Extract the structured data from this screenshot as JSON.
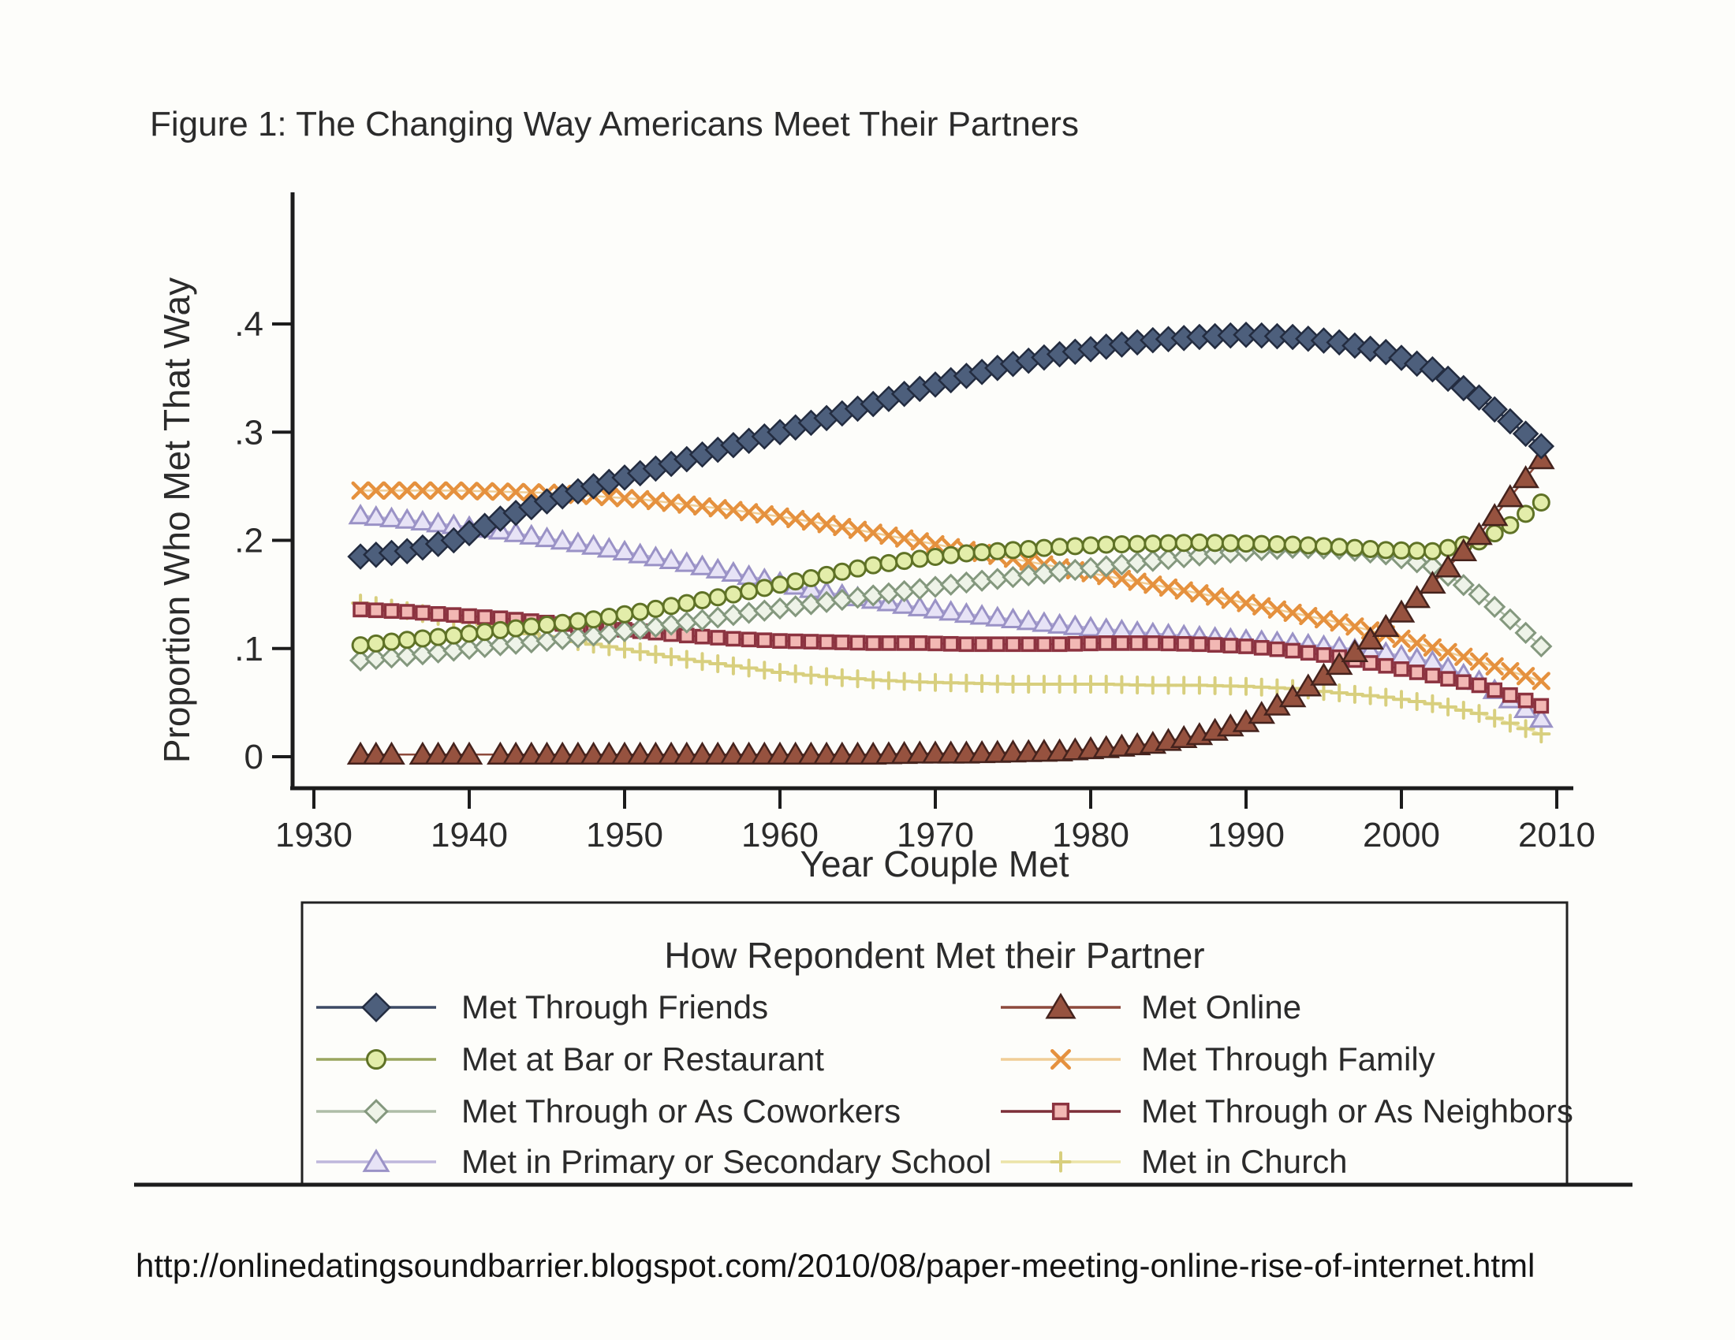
{
  "page": {
    "source_url": "http://onlinedatingsoundbarrier.blogspot.com/2010/08/paper-meeting-online-rise-of-internet.html"
  },
  "chart_data": {
    "type": "line",
    "title": "Figure 1: The Changing Way Americans Meet Their Partners",
    "xlabel": "Year Couple Met",
    "ylabel": "Proportion Who Met That Way",
    "grid": false,
    "xlim": [
      1928,
      2011
    ],
    "ylim": [
      0,
      0.45
    ],
    "x_ticks": [
      1930,
      1940,
      1950,
      1960,
      1970,
      1980,
      1990,
      2000,
      2010
    ],
    "y_ticks": [
      {
        "value": 0.0,
        "label": "0"
      },
      {
        "value": 0.1,
        "label": ".1"
      },
      {
        "value": 0.2,
        "label": ".2"
      },
      {
        "value": 0.3,
        "label": ".3"
      },
      {
        "value": 0.4,
        "label": ".4"
      }
    ],
    "legend": {
      "title": "How Repondent Met their Partner",
      "position": "bottom-box",
      "entries": [
        "friends",
        "online",
        "bar",
        "family",
        "coworkers",
        "neighbors",
        "school",
        "church"
      ]
    },
    "series": [
      {
        "key": "friends",
        "name": "Met Through Friends",
        "marker": "diamond-filled",
        "color": "#232c40",
        "fill": "#4d5f7c",
        "line_color": "#3c4a64",
        "years": [
          1933,
          1936,
          1939,
          1942,
          1945,
          1948,
          1951,
          1954,
          1957,
          1960,
          1963,
          1966,
          1969,
          1972,
          1975,
          1978,
          1981,
          1984,
          1987,
          1990,
          1993,
          1996,
          1999,
          2002,
          2005,
          2007,
          2009
        ],
        "values": [
          0.185,
          0.19,
          0.2,
          0.22,
          0.236,
          0.25,
          0.262,
          0.275,
          0.288,
          0.3,
          0.313,
          0.326,
          0.34,
          0.352,
          0.363,
          0.372,
          0.379,
          0.385,
          0.388,
          0.39,
          0.388,
          0.383,
          0.374,
          0.358,
          0.332,
          0.31,
          0.287
        ]
      },
      {
        "key": "online",
        "name": "Met Online",
        "marker": "triangle-filled",
        "color": "#45231d",
        "fill": "#96523f",
        "line_color": "#8d4a3c",
        "marker_gap_years": [
          1936,
          1941
        ],
        "years": [
          1933,
          1936,
          1939,
          1942,
          1945,
          1948,
          1951,
          1954,
          1957,
          1960,
          1963,
          1966,
          1969,
          1972,
          1975,
          1978,
          1981,
          1984,
          1987,
          1990,
          1993,
          1996,
          1999,
          2002,
          2005,
          2007,
          2009
        ],
        "values": [
          0.002,
          0.002,
          0.002,
          0.002,
          0.002,
          0.002,
          0.002,
          0.002,
          0.002,
          0.002,
          0.002,
          0.002,
          0.003,
          0.003,
          0.004,
          0.005,
          0.008,
          0.012,
          0.02,
          0.032,
          0.055,
          0.085,
          0.12,
          0.16,
          0.205,
          0.24,
          0.275
        ]
      },
      {
        "key": "bar",
        "name": "Met at Bar or Restaurant",
        "marker": "circle-open",
        "color": "#5f7226",
        "fill": "#e3edaa",
        "line_color": "#9aa55e",
        "years": [
          1933,
          1936,
          1939,
          1942,
          1945,
          1948,
          1951,
          1954,
          1957,
          1960,
          1963,
          1966,
          1969,
          1972,
          1975,
          1978,
          1981,
          1984,
          1987,
          1990,
          1993,
          1996,
          1999,
          2002,
          2005,
          2007,
          2009
        ],
        "values": [
          0.103,
          0.108,
          0.112,
          0.117,
          0.122,
          0.127,
          0.134,
          0.142,
          0.15,
          0.159,
          0.168,
          0.177,
          0.183,
          0.188,
          0.191,
          0.194,
          0.196,
          0.197,
          0.198,
          0.197,
          0.196,
          0.194,
          0.191,
          0.19,
          0.199,
          0.214,
          0.235
        ]
      },
      {
        "key": "family",
        "name": "Met Through Family",
        "marker": "x-cross",
        "color": "#e5913e",
        "fill": "none",
        "line_color": "#f0cd96",
        "years": [
          1933,
          1936,
          1939,
          1942,
          1945,
          1948,
          1951,
          1954,
          1957,
          1960,
          1963,
          1966,
          1969,
          1972,
          1975,
          1978,
          1981,
          1984,
          1987,
          1990,
          1993,
          1996,
          1999,
          2002,
          2005,
          2007,
          2009
        ],
        "values": [
          0.246,
          0.246,
          0.246,
          0.245,
          0.244,
          0.241,
          0.238,
          0.233,
          0.228,
          0.222,
          0.215,
          0.207,
          0.199,
          0.191,
          0.183,
          0.175,
          0.167,
          0.159,
          0.151,
          0.142,
          0.133,
          0.124,
          0.113,
          0.101,
          0.088,
          0.079,
          0.07
        ]
      },
      {
        "key": "coworkers",
        "name": "Met Through or As Coworkers",
        "marker": "diamond-open",
        "color": "#84987e",
        "fill": "#eef3e8",
        "line_color": "#aebda7",
        "years": [
          1933,
          1936,
          1939,
          1942,
          1945,
          1948,
          1951,
          1954,
          1957,
          1960,
          1963,
          1966,
          1969,
          1972,
          1975,
          1978,
          1981,
          1984,
          1987,
          1990,
          1993,
          1996,
          1999,
          2002,
          2005,
          2007,
          2009
        ],
        "values": [
          0.089,
          0.093,
          0.098,
          0.103,
          0.107,
          0.112,
          0.118,
          0.124,
          0.131,
          0.137,
          0.143,
          0.149,
          0.155,
          0.161,
          0.166,
          0.171,
          0.176,
          0.181,
          0.186,
          0.19,
          0.193,
          0.192,
          0.187,
          0.176,
          0.15,
          0.127,
          0.102
        ]
      },
      {
        "key": "neighbors",
        "name": "Met Through or As Neighbors",
        "marker": "square-open",
        "color": "#8c3340",
        "fill": "#f2b8b4",
        "line_color": "#7c2e38",
        "years": [
          1933,
          1936,
          1939,
          1942,
          1945,
          1948,
          1951,
          1954,
          1957,
          1960,
          1963,
          1966,
          1969,
          1972,
          1975,
          1978,
          1981,
          1984,
          1987,
          1990,
          1993,
          1996,
          1999,
          2002,
          2005,
          2007,
          2009
        ],
        "values": [
          0.136,
          0.134,
          0.131,
          0.128,
          0.124,
          0.12,
          0.116,
          0.112,
          0.109,
          0.107,
          0.106,
          0.105,
          0.105,
          0.104,
          0.104,
          0.104,
          0.105,
          0.105,
          0.104,
          0.102,
          0.098,
          0.092,
          0.084,
          0.075,
          0.066,
          0.057,
          0.047
        ]
      },
      {
        "key": "school",
        "name": "Met in Primary or Secondary School",
        "marker": "triangle-open",
        "color": "#9a92c6",
        "fill": "#e7e3f6",
        "line_color": "#beb7dc",
        "years": [
          1933,
          1936,
          1939,
          1942,
          1945,
          1948,
          1951,
          1954,
          1957,
          1960,
          1963,
          1966,
          1969,
          1972,
          1975,
          1978,
          1981,
          1984,
          1987,
          1990,
          1993,
          1996,
          1999,
          2002,
          2005,
          2007,
          2009
        ],
        "values": [
          0.223,
          0.219,
          0.214,
          0.209,
          0.202,
          0.195,
          0.187,
          0.179,
          0.17,
          0.161,
          0.152,
          0.145,
          0.138,
          0.132,
          0.127,
          0.122,
          0.118,
          0.114,
          0.111,
          0.108,
          0.105,
          0.101,
          0.096,
          0.088,
          0.07,
          0.053,
          0.035
        ]
      },
      {
        "key": "church",
        "name": "Met in Church",
        "marker": "plus",
        "color": "#d8cf7e",
        "fill": "none",
        "line_color": "#ebe4a8",
        "years": [
          1933,
          1936,
          1939,
          1942,
          1945,
          1948,
          1951,
          1954,
          1957,
          1960,
          1963,
          1966,
          1969,
          1972,
          1975,
          1978,
          1981,
          1984,
          1987,
          1990,
          1993,
          1996,
          1999,
          2002,
          2005,
          2007,
          2009
        ],
        "values": [
          0.142,
          0.135,
          0.127,
          0.119,
          0.111,
          0.104,
          0.097,
          0.09,
          0.084,
          0.078,
          0.074,
          0.071,
          0.069,
          0.068,
          0.067,
          0.067,
          0.067,
          0.066,
          0.066,
          0.065,
          0.063,
          0.059,
          0.055,
          0.049,
          0.04,
          0.031,
          0.021
        ]
      }
    ]
  }
}
